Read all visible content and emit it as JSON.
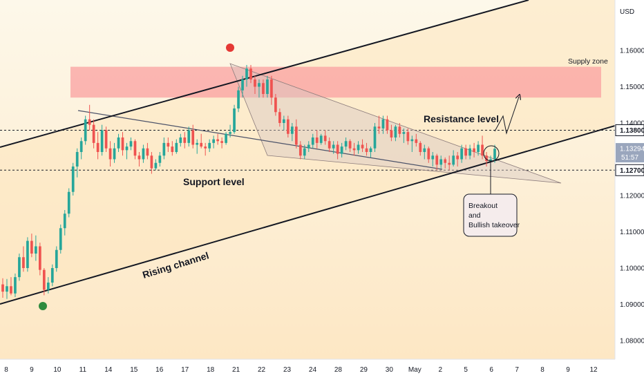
{
  "chart_data": {
    "type": "candlestick",
    "currency": "USD",
    "y_axis": {
      "range": [
        1.0725,
        1.1725
      ],
      "ticks": [
        "1.16000",
        "1.15000",
        "1.14000",
        "1.13000",
        "1.12000",
        "1.11000",
        "1.10000",
        "1.09000",
        "1.08000"
      ],
      "tick_values": [
        1.16,
        1.15,
        1.14,
        1.13,
        1.12,
        1.11,
        1.1,
        1.09,
        1.08
      ]
    },
    "x_axis": {
      "ticks": [
        "8",
        "9",
        "10",
        "11",
        "14",
        "15",
        "16",
        "17",
        "18",
        "21",
        "22",
        "23",
        "24",
        "28",
        "29",
        "30",
        "May",
        "2",
        "5",
        "6",
        "7",
        "8",
        "9",
        "12"
      ]
    },
    "price_labels": {
      "resistance": "1.13800",
      "current": "1.13294",
      "countdown": "51:57",
      "support": "1.12700"
    },
    "levels": {
      "resistance": 1.138,
      "support": 1.127,
      "current": 1.13294
    },
    "supply_zone": {
      "from": 1.147,
      "to": 1.1555
    },
    "annotations": {
      "supply_zone": "Supply zone",
      "resistance": "Resistance level",
      "support": "Support level",
      "channel": "Rising channel",
      "callout": [
        "Breakout",
        "and",
        "Bullish takeover"
      ]
    },
    "colors": {
      "up": "#26a69a",
      "down": "#ef5350",
      "supply_zone": "#f9a0a0",
      "background_top": "#fdf6e3",
      "background_bottom": "#fde2b8",
      "low_marker": "#2e8b3e",
      "high_marker": "#e53935"
    },
    "candles": [
      [
        1.0955,
        1.0972,
        1.0918,
        1.0935
      ],
      [
        1.0935,
        1.097,
        1.0915,
        1.095
      ],
      [
        1.095,
        1.0975,
        1.0925,
        1.093
      ],
      [
        1.093,
        1.0985,
        1.092,
        1.0975
      ],
      [
        1.0975,
        1.104,
        1.0965,
        1.103
      ],
      [
        1.103,
        1.106,
        1.099,
        1.1
      ],
      [
        1.1,
        1.1085,
        1.099,
        1.1075
      ],
      [
        1.1075,
        1.1095,
        1.103,
        1.104
      ],
      [
        1.104,
        1.109,
        1.102,
        1.106
      ],
      [
        1.106,
        1.107,
        1.098,
        1.0995
      ],
      [
        1.0995,
        1.1,
        1.0925,
        1.094
      ],
      [
        1.094,
        1.0975,
        1.093,
        1.096
      ],
      [
        1.096,
        1.101,
        1.095,
        1.1
      ],
      [
        1.1,
        1.106,
        1.099,
        1.105
      ],
      [
        1.105,
        1.112,
        1.104,
        1.111
      ],
      [
        1.111,
        1.116,
        1.109,
        1.115
      ],
      [
        1.115,
        1.122,
        1.114,
        1.121
      ],
      [
        1.121,
        1.129,
        1.12,
        1.128
      ],
      [
        1.128,
        1.133,
        1.125,
        1.132
      ],
      [
        1.132,
        1.136,
        1.13,
        1.135
      ],
      [
        1.135,
        1.142,
        1.134,
        1.141
      ],
      [
        1.141,
        1.145,
        1.138,
        1.1395
      ],
      [
        1.1395,
        1.141,
        1.133,
        1.1345
      ],
      [
        1.1345,
        1.1375,
        1.13,
        1.132
      ],
      [
        1.132,
        1.1395,
        1.131,
        1.138
      ],
      [
        1.138,
        1.139,
        1.132,
        1.133
      ],
      [
        1.133,
        1.135,
        1.128,
        1.13
      ],
      [
        1.13,
        1.1345,
        1.129,
        1.133
      ],
      [
        1.133,
        1.137,
        1.132,
        1.136
      ],
      [
        1.136,
        1.1375,
        1.131,
        1.1325
      ],
      [
        1.1325,
        1.1345,
        1.13,
        1.1335
      ],
      [
        1.1335,
        1.136,
        1.1325,
        1.135
      ],
      [
        1.135,
        1.1355,
        1.13,
        1.131
      ],
      [
        1.131,
        1.132,
        1.128,
        1.13
      ],
      [
        1.13,
        1.134,
        1.129,
        1.133
      ],
      [
        1.133,
        1.1345,
        1.13,
        1.131
      ],
      [
        1.131,
        1.132,
        1.126,
        1.1275
      ],
      [
        1.1275,
        1.13,
        1.127,
        1.129
      ],
      [
        1.129,
        1.132,
        1.128,
        1.131
      ],
      [
        1.131,
        1.136,
        1.13,
        1.1345
      ],
      [
        1.1345,
        1.136,
        1.132,
        1.1335
      ],
      [
        1.1335,
        1.135,
        1.131,
        1.132
      ],
      [
        1.132,
        1.1355,
        1.1315,
        1.1345
      ],
      [
        1.1345,
        1.137,
        1.1335,
        1.136
      ],
      [
        1.136,
        1.1375,
        1.133,
        1.1345
      ],
      [
        1.1345,
        1.139,
        1.1335,
        1.138
      ],
      [
        1.138,
        1.1395,
        1.133,
        1.134
      ],
      [
        1.134,
        1.1355,
        1.1315,
        1.1345
      ],
      [
        1.1345,
        1.137,
        1.133,
        1.1335
      ],
      [
        1.1335,
        1.1345,
        1.131,
        1.133
      ],
      [
        1.133,
        1.1355,
        1.132,
        1.1345
      ],
      [
        1.1345,
        1.1365,
        1.133,
        1.1355
      ],
      [
        1.1355,
        1.137,
        1.134,
        1.135
      ],
      [
        1.135,
        1.136,
        1.133,
        1.1345
      ],
      [
        1.1345,
        1.1375,
        1.134,
        1.137
      ],
      [
        1.137,
        1.1395,
        1.136,
        1.1375
      ],
      [
        1.1375,
        1.145,
        1.137,
        1.144
      ],
      [
        1.144,
        1.15,
        1.143,
        1.149
      ],
      [
        1.149,
        1.153,
        1.147,
        1.152
      ],
      [
        1.152,
        1.156,
        1.15,
        1.155
      ],
      [
        1.155,
        1.156,
        1.151,
        1.152
      ],
      [
        1.152,
        1.153,
        1.148,
        1.15
      ],
      [
        1.15,
        1.152,
        1.147,
        1.151
      ],
      [
        1.151,
        1.152,
        1.147,
        1.148
      ],
      [
        1.148,
        1.153,
        1.147,
        1.152
      ],
      [
        1.152,
        1.153,
        1.145,
        1.147
      ],
      [
        1.147,
        1.148,
        1.142,
        1.143
      ],
      [
        1.143,
        1.144,
        1.139,
        1.14
      ],
      [
        1.14,
        1.142,
        1.138,
        1.141
      ],
      [
        1.141,
        1.142,
        1.136,
        1.137
      ],
      [
        1.137,
        1.14,
        1.135,
        1.139
      ],
      [
        1.139,
        1.141,
        1.133,
        1.134
      ],
      [
        1.134,
        1.135,
        1.13,
        1.131
      ],
      [
        1.131,
        1.134,
        1.13,
        1.133
      ],
      [
        1.133,
        1.135,
        1.132,
        1.134
      ],
      [
        1.134,
        1.137,
        1.133,
        1.136
      ],
      [
        1.136,
        1.138,
        1.133,
        1.1345
      ],
      [
        1.1345,
        1.137,
        1.134,
        1.1365
      ],
      [
        1.1365,
        1.138,
        1.134,
        1.135
      ],
      [
        1.135,
        1.136,
        1.132,
        1.133
      ],
      [
        1.133,
        1.135,
        1.1315,
        1.134
      ],
      [
        1.134,
        1.135,
        1.13,
        1.1315
      ],
      [
        1.1315,
        1.1345,
        1.1305,
        1.1335
      ],
      [
        1.1335,
        1.136,
        1.1325,
        1.135
      ],
      [
        1.135,
        1.1355,
        1.132,
        1.133
      ],
      [
        1.133,
        1.1345,
        1.131,
        1.1325
      ],
      [
        1.1325,
        1.135,
        1.1315,
        1.134
      ],
      [
        1.134,
        1.1355,
        1.132,
        1.133
      ],
      [
        1.133,
        1.1345,
        1.131,
        1.132
      ],
      [
        1.132,
        1.1335,
        1.1305,
        1.133
      ],
      [
        1.133,
        1.14,
        1.132,
        1.139
      ],
      [
        1.139,
        1.142,
        1.137,
        1.1385
      ],
      [
        1.1385,
        1.142,
        1.137,
        1.141
      ],
      [
        1.141,
        1.142,
        1.137,
        1.138
      ],
      [
        1.138,
        1.1395,
        1.135,
        1.136
      ],
      [
        1.136,
        1.1395,
        1.135,
        1.139
      ],
      [
        1.139,
        1.14,
        1.136,
        1.137
      ],
      [
        1.137,
        1.1385,
        1.1345,
        1.1375
      ],
      [
        1.1375,
        1.1385,
        1.134,
        1.135
      ],
      [
        1.135,
        1.1365,
        1.132,
        1.1355
      ],
      [
        1.1355,
        1.137,
        1.1335,
        1.1345
      ],
      [
        1.1345,
        1.135,
        1.131,
        1.132
      ],
      [
        1.132,
        1.134,
        1.13,
        1.133
      ],
      [
        1.133,
        1.1335,
        1.129,
        1.13
      ],
      [
        1.13,
        1.132,
        1.128,
        1.131
      ],
      [
        1.131,
        1.1315,
        1.127,
        1.1285
      ],
      [
        1.1285,
        1.131,
        1.1275,
        1.13
      ],
      [
        1.13,
        1.1305,
        1.1275,
        1.129
      ],
      [
        1.129,
        1.131,
        1.127,
        1.1285
      ],
      [
        1.1285,
        1.1325,
        1.128,
        1.131
      ],
      [
        1.131,
        1.132,
        1.128,
        1.13
      ],
      [
        1.13,
        1.134,
        1.129,
        1.133
      ],
      [
        1.133,
        1.134,
        1.13,
        1.131
      ],
      [
        1.131,
        1.134,
        1.13,
        1.133
      ],
      [
        1.133,
        1.1345,
        1.1305,
        1.132
      ],
      [
        1.132,
        1.135,
        1.131,
        1.134
      ],
      [
        1.134,
        1.1365,
        1.13,
        1.131
      ],
      [
        1.131,
        1.132,
        1.128,
        1.1295
      ],
      [
        1.1295,
        1.131,
        1.1275,
        1.13
      ],
      [
        1.13,
        1.134,
        1.129,
        1.1329
      ]
    ]
  }
}
